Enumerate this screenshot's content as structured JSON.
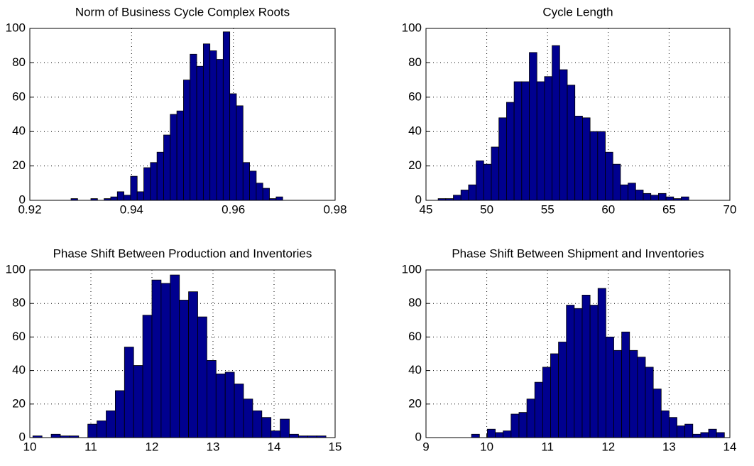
{
  "chart_data": [
    {
      "type": "histogram",
      "title": "Norm of Business Cycle Complex Roots",
      "color": "#00008f",
      "grid": true,
      "bins": [
        0.9281,
        0.9294,
        0.9307,
        0.932,
        0.9333,
        0.9346,
        0.9359,
        0.9372,
        0.9385,
        0.9398,
        0.9411,
        0.9424,
        0.9437,
        0.945,
        0.9463,
        0.9476,
        0.9489,
        0.9502,
        0.9515,
        0.9528,
        0.9541,
        0.9554,
        0.9567,
        0.958,
        0.9593,
        0.9606,
        0.9619,
        0.9632,
        0.9645,
        0.9658,
        0.9671,
        0.9684,
        0.9697
      ],
      "values": [
        1,
        0,
        0,
        1,
        0,
        1,
        2,
        5,
        3,
        14,
        5,
        19,
        22,
        28,
        38,
        50,
        52,
        70,
        85,
        78,
        91,
        87,
        82,
        98,
        62,
        55,
        22,
        17,
        10,
        7,
        1,
        2
      ],
      "xlim": [
        0.92,
        0.98
      ],
      "xticks": [
        0.92,
        0.94,
        0.96,
        0.98
      ],
      "ylim": [
        0,
        100
      ],
      "yticks": [
        0,
        20,
        40,
        60,
        80,
        100
      ]
    },
    {
      "type": "histogram",
      "title": "Cycle Length",
      "color": "#00008f",
      "grid": true,
      "bins": [
        46,
        46.625,
        47.25,
        47.875,
        48.5,
        49.125,
        49.75,
        50.375,
        51,
        51.625,
        52.25,
        52.875,
        53.5,
        54.125,
        54.75,
        55.375,
        56,
        56.625,
        57.25,
        57.875,
        58.5,
        59.125,
        59.75,
        60.375,
        61,
        61.625,
        62.25,
        62.875,
        63.5,
        64.125,
        64.75,
        65.375,
        66,
        66.625
      ],
      "values": [
        1,
        1,
        3,
        6,
        9,
        23,
        21,
        31,
        48,
        57,
        69,
        69,
        86,
        69,
        72,
        90,
        76,
        67,
        49,
        48,
        40,
        40,
        28,
        21,
        9,
        10,
        6,
        4,
        3,
        4,
        2,
        1,
        2
      ],
      "xlim": [
        45,
        70
      ],
      "xticks": [
        45,
        50,
        55,
        60,
        65,
        70
      ],
      "ylim": [
        0,
        100
      ],
      "yticks": [
        0,
        20,
        40,
        60,
        80,
        100
      ]
    },
    {
      "type": "histogram",
      "title": "Phase Shift Between Production and Inventories",
      "color": "#00008f",
      "grid": true,
      "bins": [
        10.05,
        10.2,
        10.35,
        10.5,
        10.65,
        10.8,
        10.95,
        11.1,
        11.25,
        11.4,
        11.55,
        11.7,
        11.85,
        12,
        12.15,
        12.3,
        12.45,
        12.6,
        12.75,
        12.9,
        13.05,
        13.2,
        13.35,
        13.5,
        13.65,
        13.8,
        13.95,
        14.1,
        14.25,
        14.4,
        14.55,
        14.7,
        14.85
      ],
      "values": [
        1,
        0,
        2,
        1,
        1,
        0,
        8,
        10,
        16,
        28,
        54,
        43,
        73,
        94,
        92,
        97,
        82,
        87,
        72,
        46,
        38,
        39,
        32,
        23,
        16,
        12,
        4,
        11,
        2,
        1,
        1,
        1
      ],
      "xlim": [
        10,
        15
      ],
      "xticks": [
        10,
        11,
        12,
        13,
        14,
        15
      ],
      "ylim": [
        0,
        100
      ],
      "yticks": [
        0,
        20,
        40,
        60,
        80,
        100
      ]
    },
    {
      "type": "histogram",
      "title": "Phase Shift Between Shipment and Inventories",
      "color": "#00008f",
      "grid": true,
      "bins": [
        9.75,
        9.88,
        10.01,
        10.14,
        10.27,
        10.4,
        10.53,
        10.66,
        10.79,
        10.92,
        11.05,
        11.18,
        11.31,
        11.44,
        11.57,
        11.7,
        11.83,
        11.96,
        12.09,
        12.22,
        12.35,
        12.48,
        12.61,
        12.74,
        12.87,
        13,
        13.13,
        13.26,
        13.39,
        13.52,
        13.65,
        13.78,
        13.91
      ],
      "values": [
        2,
        0,
        5,
        3,
        4,
        14,
        15,
        23,
        33,
        42,
        50,
        57,
        79,
        77,
        85,
        79,
        89,
        60,
        52,
        63,
        52,
        48,
        42,
        29,
        16,
        12,
        7,
        8,
        2,
        3,
        5,
        3
      ],
      "xlim": [
        9,
        14
      ],
      "xticks": [
        9,
        10,
        11,
        12,
        13,
        14
      ],
      "ylim": [
        0,
        100
      ],
      "yticks": [
        0,
        20,
        40,
        60,
        80,
        100
      ]
    }
  ]
}
